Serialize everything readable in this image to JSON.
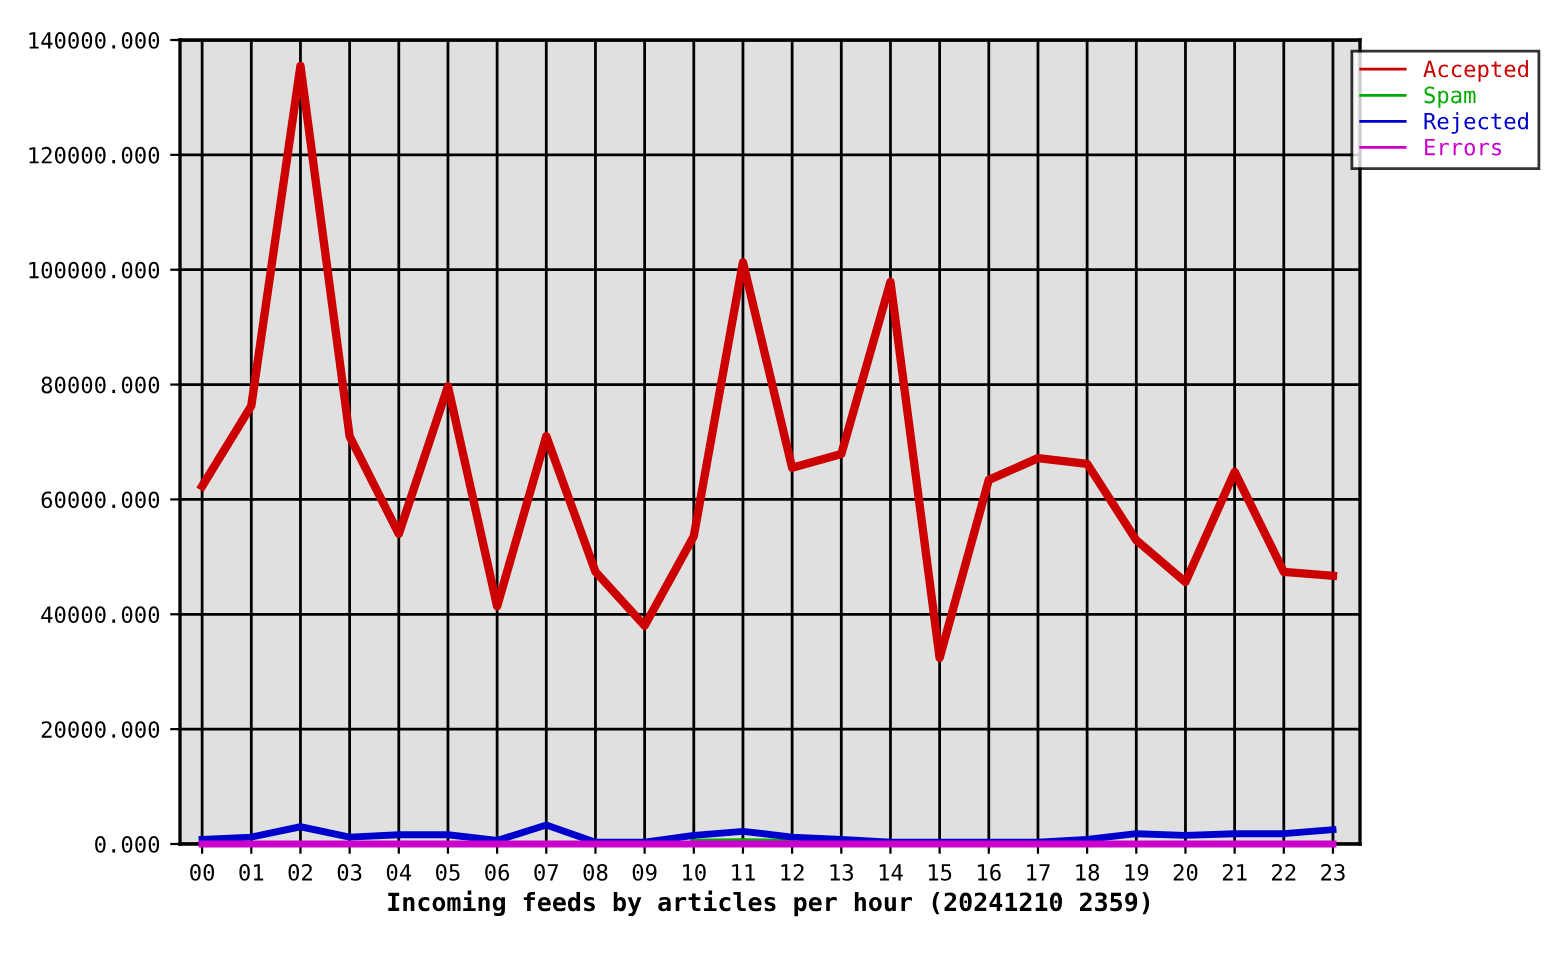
{
  "chart_data": {
    "type": "line",
    "xlabel": "Incoming feeds by articles per hour (20241210 2359)",
    "categories": [
      "00",
      "01",
      "02",
      "03",
      "04",
      "05",
      "06",
      "07",
      "08",
      "09",
      "10",
      "11",
      "12",
      "13",
      "14",
      "15",
      "16",
      "17",
      "18",
      "19",
      "20",
      "21",
      "22",
      "23"
    ],
    "series": [
      {
        "name": "Accepted",
        "color": "#cc0000",
        "values": [
          62300,
          76300,
          135500,
          71000,
          54000,
          79700,
          41400,
          71000,
          47400,
          38000,
          53600,
          101300,
          65500,
          67900,
          97900,
          32400,
          63400,
          67200,
          66200,
          52900,
          45600,
          64800,
          47400,
          46700
        ]
      },
      {
        "name": "Spam",
        "color": "#00aa00",
        "values": [
          null,
          null,
          null,
          null,
          null,
          null,
          null,
          null,
          null,
          null,
          300,
          400,
          300,
          null,
          null,
          null,
          null,
          null,
          null,
          null,
          null,
          null,
          null,
          null
        ]
      },
      {
        "name": "Rejected",
        "color": "#0000cc",
        "values": [
          800,
          1200,
          3000,
          1200,
          1600,
          1600,
          600,
          3300,
          300,
          300,
          1500,
          2200,
          1200,
          800,
          300,
          300,
          300,
          300,
          800,
          1800,
          1500,
          1800,
          1800,
          2500
        ]
      },
      {
        "name": "Errors",
        "color": "#cc00cc",
        "values": [
          0,
          0,
          0,
          0,
          0,
          0,
          0,
          0,
          0,
          0,
          0,
          0,
          0,
          0,
          0,
          0,
          0,
          0,
          0,
          0,
          0,
          0,
          0,
          0
        ]
      }
    ],
    "ylim": [
      0,
      140000
    ],
    "yticks": [
      {
        "value": 0,
        "label": "0.000"
      },
      {
        "value": 20000,
        "label": "20000.000"
      },
      {
        "value": 40000,
        "label": "40000.000"
      },
      {
        "value": 60000,
        "label": "60000.000"
      },
      {
        "value": 80000,
        "label": "80000.000"
      },
      {
        "value": 100000,
        "label": "100000.000"
      },
      {
        "value": 120000,
        "label": "120000.000"
      },
      {
        "value": 140000,
        "label": "140000.000"
      }
    ],
    "grid": true,
    "legend": "top right",
    "line_style": "solid"
  }
}
